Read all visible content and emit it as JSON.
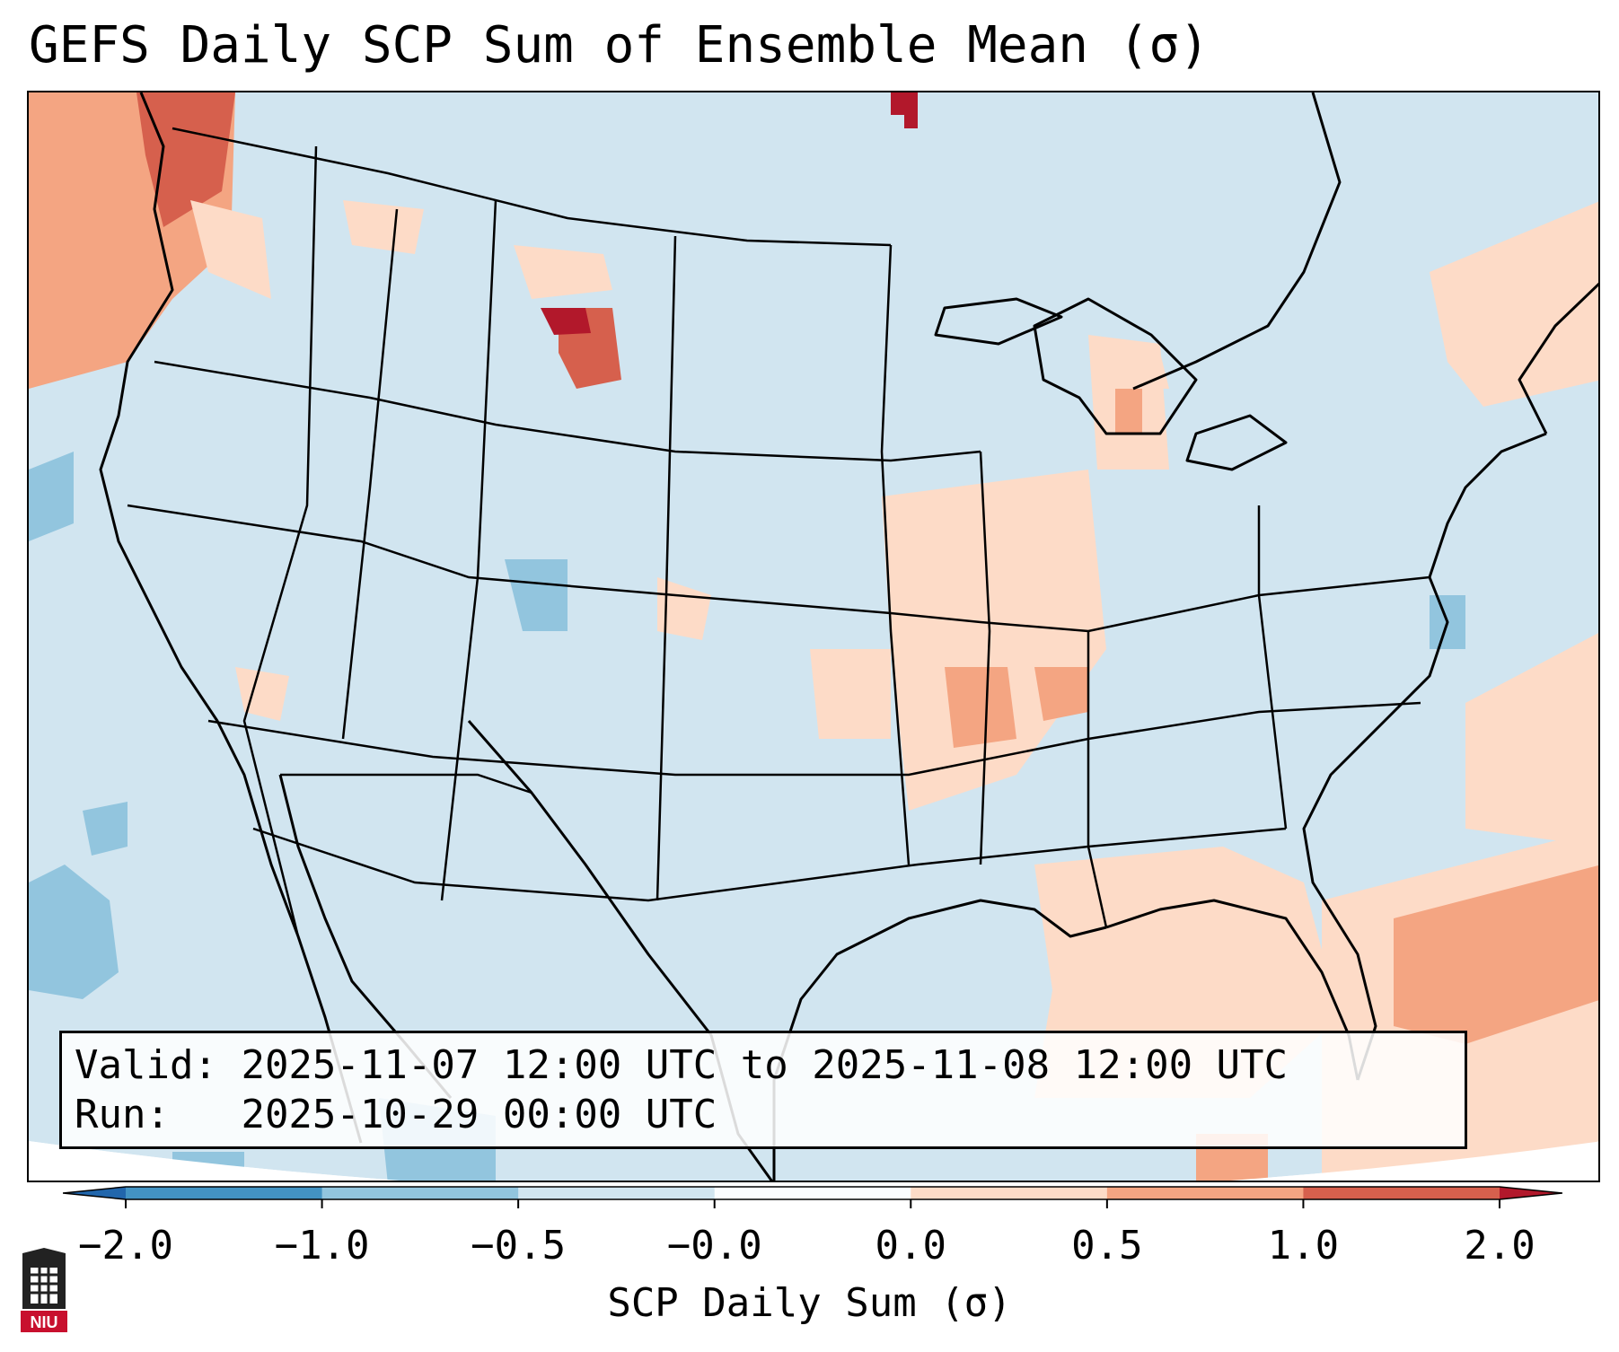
{
  "title": "GEFS Daily SCP Sum of Ensemble Mean (σ)",
  "info": {
    "valid_label": "Valid:",
    "valid_range": "2025-11-07 12:00 UTC to 2025-11-08 12:00 UTC",
    "run_label": "Run:",
    "run_time": "2025-10-29 00:00 UTC"
  },
  "colorbar": {
    "label": "SCP Daily Sum (σ)",
    "ticks": [
      "−2.0",
      "−1.0",
      "−0.5",
      "−0.0",
      "0.0",
      "0.5",
      "1.0",
      "2.0"
    ],
    "colors": [
      "#2166ac",
      "#4393c3",
      "#92c5de",
      "#d1e5f0",
      "#fbfdff",
      "#fddbc7",
      "#f4a582",
      "#d6604d",
      "#b2182b"
    ],
    "extend": "both"
  },
  "logo_text": "NIU",
  "icons": [
    "niu-logo-icon"
  ]
}
